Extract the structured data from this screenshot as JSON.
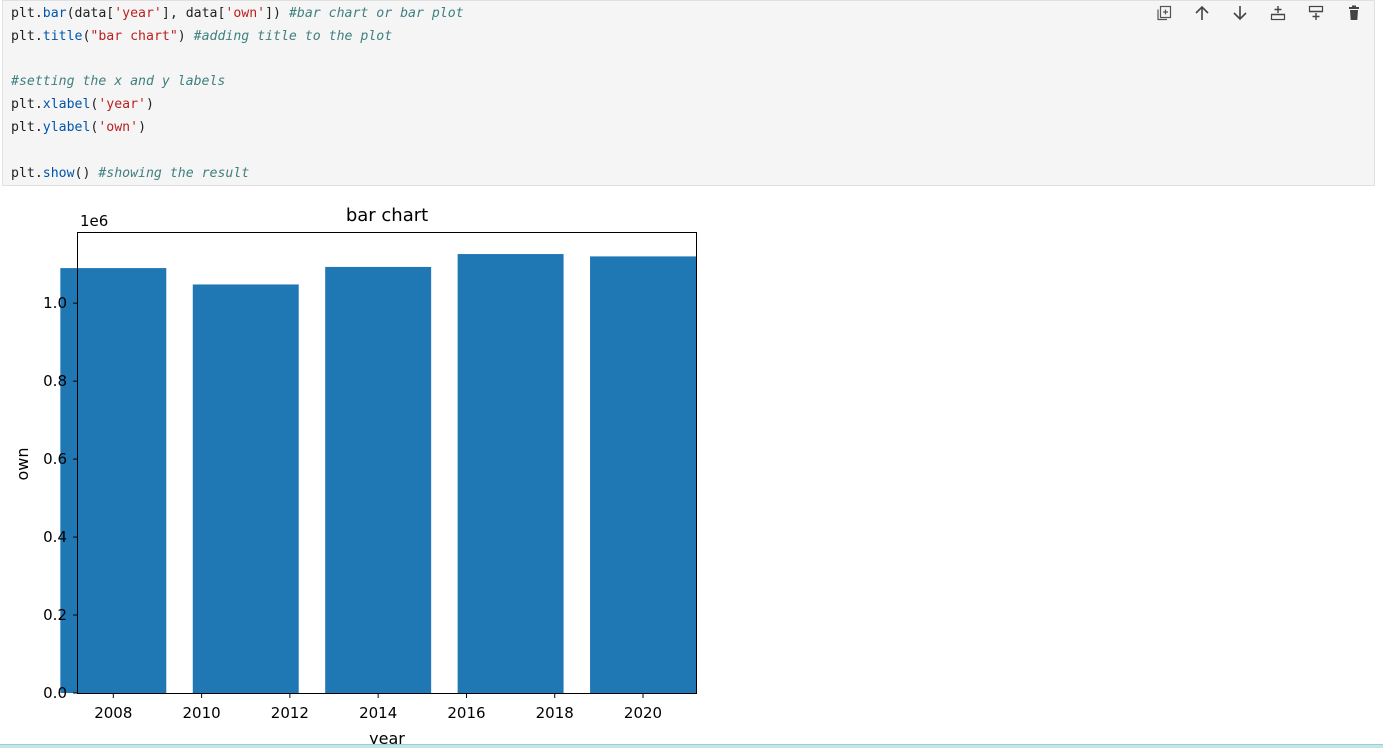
{
  "cell": {
    "code_lines": [
      [
        {
          "t": "plt.",
          "c": ""
        },
        {
          "t": "bar",
          "c": "attr"
        },
        {
          "t": "(data[",
          "c": ""
        },
        {
          "t": "'year'",
          "c": "str"
        },
        {
          "t": "], data[",
          "c": ""
        },
        {
          "t": "'own'",
          "c": "str"
        },
        {
          "t": "]) ",
          "c": ""
        },
        {
          "t": "#bar chart or bar plot",
          "c": "com"
        }
      ],
      [
        {
          "t": "plt.",
          "c": ""
        },
        {
          "t": "title",
          "c": "attr"
        },
        {
          "t": "(",
          "c": ""
        },
        {
          "t": "\"bar chart\"",
          "c": "str"
        },
        {
          "t": ") ",
          "c": ""
        },
        {
          "t": "#adding title to the plot",
          "c": "com"
        }
      ],
      [],
      [
        {
          "t": "#setting the x and y labels",
          "c": "com"
        }
      ],
      [
        {
          "t": "plt.",
          "c": ""
        },
        {
          "t": "xlabel",
          "c": "attr"
        },
        {
          "t": "(",
          "c": ""
        },
        {
          "t": "'year'",
          "c": "str"
        },
        {
          "t": ")",
          "c": ""
        }
      ],
      [
        {
          "t": "plt.",
          "c": ""
        },
        {
          "t": "ylabel",
          "c": "attr"
        },
        {
          "t": "(",
          "c": ""
        },
        {
          "t": "'own'",
          "c": "str"
        },
        {
          "t": ")",
          "c": ""
        }
      ],
      [],
      [
        {
          "t": "plt.",
          "c": ""
        },
        {
          "t": "show",
          "c": "attr"
        },
        {
          "t": "() ",
          "c": ""
        },
        {
          "t": "#showing the result",
          "c": "com"
        }
      ]
    ],
    "toolbar": [
      {
        "name": "copy-cell-icon"
      },
      {
        "name": "move-up-icon"
      },
      {
        "name": "move-down-icon"
      },
      {
        "name": "insert-above-icon"
      },
      {
        "name": "insert-below-icon"
      },
      {
        "name": "delete-cell-icon"
      }
    ]
  },
  "chart_data": {
    "type": "bar",
    "title": "bar chart",
    "xlabel": "year",
    "ylabel": "own",
    "offset_label": "1e6",
    "x": [
      2008,
      2011,
      2014,
      2017,
      2020
    ],
    "values": [
      1090000,
      1048000,
      1093000,
      1126000,
      1120000
    ],
    "xlim": [
      2007.2,
      2021.2
    ],
    "ylim": [
      0,
      1180000
    ],
    "xticks": [
      "2008",
      "2010",
      "2012",
      "2014",
      "2016",
      "2018",
      "2020"
    ],
    "yticks": [
      "0.0",
      "0.2",
      "0.4",
      "0.6",
      "0.8",
      "1.0"
    ],
    "bar_color": "#1f77b4",
    "grid": false
  }
}
